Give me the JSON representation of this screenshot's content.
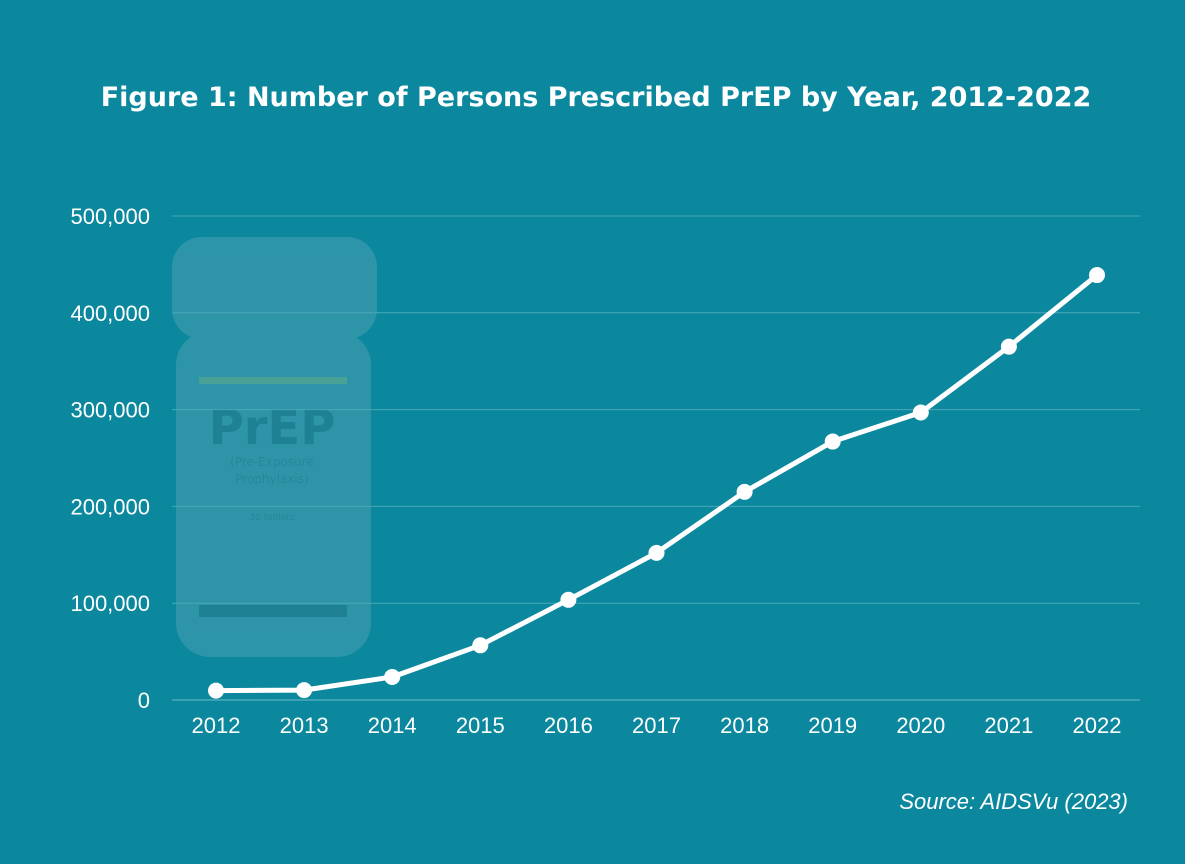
{
  "chart_data": {
    "type": "line",
    "title": "Figure 1: Number of Persons Prescribed PrEP by Year, 2012-2022",
    "source": "Source: AIDSVu (2023)",
    "x": [
      "2012",
      "2013",
      "2014",
      "2015",
      "2016",
      "2017",
      "2018",
      "2019",
      "2020",
      "2021",
      "2022"
    ],
    "series": [
      {
        "values": [
          9700,
          10200,
          23800,
          56500,
          103500,
          152000,
          215000,
          267000,
          297000,
          365000,
          439000
        ]
      }
    ],
    "ylim": [
      0,
      500000
    ],
    "yticks": [
      0,
      100000,
      200000,
      300000,
      400000,
      500000
    ],
    "ytick_labels": [
      "0",
      "100,000",
      "200,000",
      "300,000",
      "400,000",
      "500,000"
    ],
    "grid": true,
    "xlabel": "",
    "ylabel": ""
  },
  "decoration": {
    "bottle_brand": "PrEP",
    "bottle_subtitle_line1": "(Pre-Exposure",
    "bottle_subtitle_line2": "Prophylaxis)",
    "bottle_count": "30 tablets"
  },
  "colors": {
    "background": "#0b889e",
    "line": "#ffffff",
    "grid": "#4aa8b8"
  }
}
